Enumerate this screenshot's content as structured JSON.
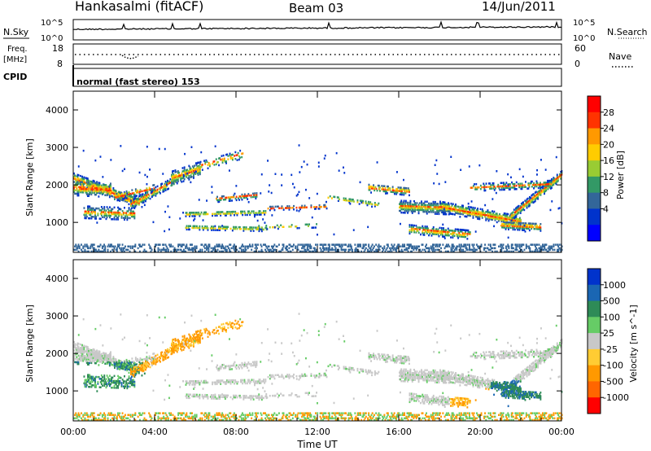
{
  "header": {
    "title": "Hankasalmi (fitACF)",
    "beam": "Beam 03",
    "date": "14/Jun/2011"
  },
  "top_panels": {
    "nsky_label": "N.Sky",
    "nsearch_label": "N.Search",
    "noise_ticks_left": [
      "10^5",
      "10^0"
    ],
    "noise_ticks_right": [
      "10^5",
      "10^0"
    ],
    "freq_label": "Freq.",
    "freq_unit": "[MHz]",
    "freq_ticks": [
      "18",
      "8"
    ],
    "nave_label": "Nave",
    "nave_ticks": [
      "60",
      "0"
    ],
    "cpid_label": "CPID",
    "cpid_value": "normal (fast stereo) 153"
  },
  "chart_data": [
    {
      "type": "heatmap",
      "name": "power",
      "ylabel": "Slant Range [km]",
      "yticks": [
        "4000",
        "3000",
        "2000",
        "1000"
      ],
      "ylim": [
        200,
        4500
      ],
      "xlim": [
        0,
        24
      ],
      "colorbar_label": "Power [dB]",
      "colorbar_ticks": [
        "28",
        "24",
        "20",
        "16",
        "12",
        "8",
        "4"
      ],
      "colorbar_colors": [
        "#ff0000",
        "#ff3300",
        "#ff9900",
        "#ffcc00",
        "#99cc33",
        "#339966",
        "#336699",
        "#0033cc",
        "#0000ff"
      ],
      "clim": [
        0,
        30
      ]
    },
    {
      "type": "heatmap",
      "name": "velocity",
      "ylabel": "Slant Range [km]",
      "yticks": [
        "4000",
        "3000",
        "2000",
        "1000"
      ],
      "ylim": [
        200,
        4500
      ],
      "xlim": [
        0,
        24
      ],
      "xlabel": "Time UT",
      "xticks": [
        "00:00",
        "04:00",
        "08:00",
        "12:00",
        "16:00",
        "20:00",
        "00:00"
      ],
      "colorbar_label": "Velocity [m s^-1]",
      "colorbar_ticks": [
        "1000",
        "500",
        "100",
        "25",
        "-25",
        "-100",
        "-500",
        "-1000"
      ],
      "colorbar_colors": [
        "#0033cc",
        "#1a66b3",
        "#2e8b57",
        "#66cc66",
        "#c8c8c8",
        "#ffcc33",
        "#ff9900",
        "#ff6600",
        "#ff0000"
      ],
      "clim": [
        -1000,
        1000
      ]
    }
  ]
}
